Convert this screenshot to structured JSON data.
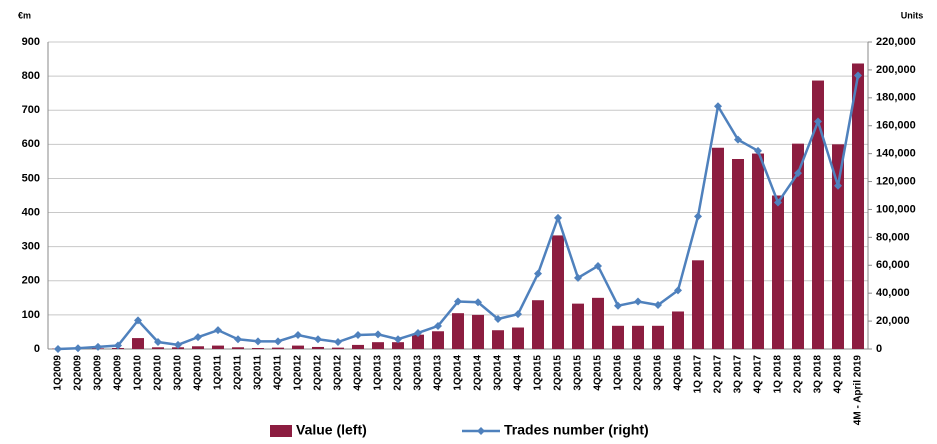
{
  "chart_data": {
    "type": "bar-line",
    "y_label": "€m",
    "y2_label": "Units",
    "categories": [
      "1Q2009",
      "2Q2009",
      "3Q2009",
      "4Q2009",
      "1Q2010",
      "2Q2010",
      "3Q2010",
      "4Q2010",
      "1Q2011",
      "2Q2011",
      "3Q2011",
      "4Q2011",
      "1Q2012",
      "2Q2012",
      "3Q2012",
      "4Q2012",
      "1Q2013",
      "2Q2013",
      "3Q2013",
      "4Q2013",
      "1Q2014",
      "2Q2014",
      "3Q2014",
      "4Q2014",
      "1Q2015",
      "2Q2015",
      "3Q2015",
      "4Q2015",
      "1Q2016",
      "2Q2016",
      "3Q2016",
      "4Q2016",
      "1Q 2017",
      "2Q 2017",
      "3Q 2017",
      "4Q 2017",
      "1Q 2018",
      "2Q 2018",
      "3Q 2018",
      "4Q 2018",
      "4M - April 2019"
    ],
    "series": [
      {
        "name": "Value (left)",
        "type": "bar",
        "color": "#8c1d40",
        "values": [
          1,
          1,
          2,
          3,
          32,
          5,
          5,
          8,
          10,
          5,
          3,
          4,
          10,
          6,
          4,
          12,
          20,
          20,
          42,
          52,
          105,
          100,
          55,
          63,
          143,
          333,
          133,
          150,
          68,
          68,
          68,
          110,
          260,
          590,
          557,
          573,
          450,
          602,
          787,
          600,
          837
        ]
      },
      {
        "name": "Trades number (right)",
        "type": "line",
        "axis": "y2",
        "color": "#4f81bd",
        "values": [
          0,
          500,
          1500,
          2500,
          20500,
          5000,
          3000,
          8500,
          13500,
          7000,
          5500,
          5500,
          10000,
          7000,
          5000,
          10000,
          10500,
          7000,
          11500,
          16500,
          34000,
          33500,
          21500,
          25000,
          54000,
          94000,
          51000,
          59500,
          31000,
          34000,
          31500,
          42000,
          95000,
          174000,
          150000,
          142000,
          105000,
          126000,
          163000,
          117000,
          196000
        ]
      }
    ],
    "ylim": [
      0,
      900
    ],
    "yticks": [
      0,
      100,
      200,
      300,
      400,
      500,
      600,
      700,
      800,
      900
    ],
    "y2lim": [
      0,
      220000
    ],
    "y2ticks": [
      0,
      {
        "value": 20000,
        "label": "20,000"
      },
      {
        "value": 40000,
        "label": "40,000"
      },
      {
        "value": 60000,
        "label": "60,000"
      },
      {
        "value": 80000,
        "label": "80,000"
      },
      {
        "value": 100000,
        "label": "100,000"
      },
      {
        "value": 120000,
        "label": "120,000"
      },
      {
        "value": 140000,
        "label": "140,000"
      },
      {
        "value": 160000,
        "label": "160,000"
      },
      {
        "value": 180000,
        "label": "180,000"
      },
      {
        "value": 200000,
        "label": "200,000"
      },
      {
        "value": 220000,
        "label": "220,000"
      }
    ],
    "grid": true
  }
}
